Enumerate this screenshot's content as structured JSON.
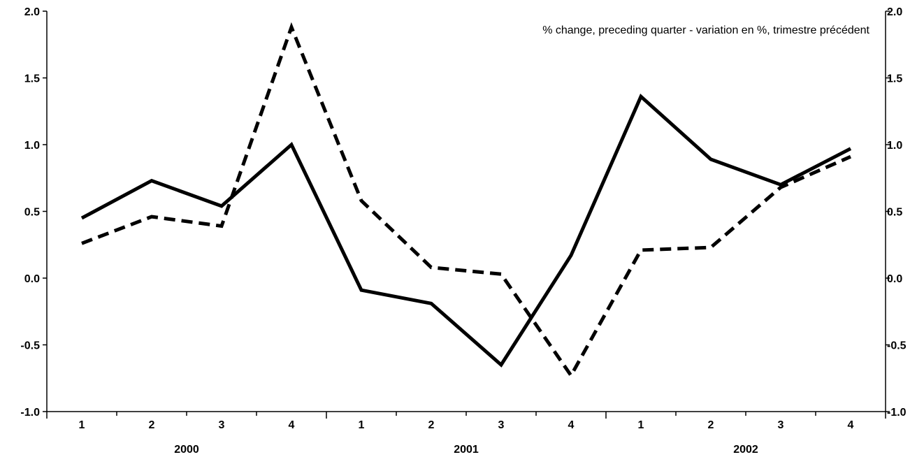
{
  "chart_data": {
    "type": "line",
    "title": "",
    "annotation": "% change, preceding quarter - variation en %, trimestre précédent",
    "xlabel": "",
    "ylabel": "",
    "ylim": [
      -1.0,
      2.0
    ],
    "y_ticks": [
      "2.0",
      "1.5",
      "1.0",
      "0.5",
      "0.0",
      "-0.5",
      "-1.0"
    ],
    "y_tick_values": [
      2.0,
      1.5,
      1.0,
      0.5,
      0.0,
      -0.5,
      -1.0
    ],
    "categories": [
      "1",
      "2",
      "3",
      "4",
      "1",
      "2",
      "3",
      "4",
      "1",
      "2",
      "3",
      "4"
    ],
    "year_groups": [
      {
        "label": "2000",
        "count": 4
      },
      {
        "label": "2001",
        "count": 4
      },
      {
        "label": "2002",
        "count": 4
      }
    ],
    "grid": false,
    "legend": "none",
    "series": [
      {
        "style": "solid",
        "color": "#000000",
        "values": [
          0.45,
          0.73,
          0.54,
          1.0,
          -0.09,
          -0.19,
          -0.65,
          0.17,
          1.36,
          0.89,
          0.7,
          0.97
        ]
      },
      {
        "style": "dashed",
        "color": "#000000",
        "values": [
          0.26,
          0.46,
          0.39,
          1.88,
          0.58,
          0.08,
          0.03,
          -0.73,
          0.21,
          0.23,
          0.68,
          0.91
        ]
      }
    ]
  }
}
